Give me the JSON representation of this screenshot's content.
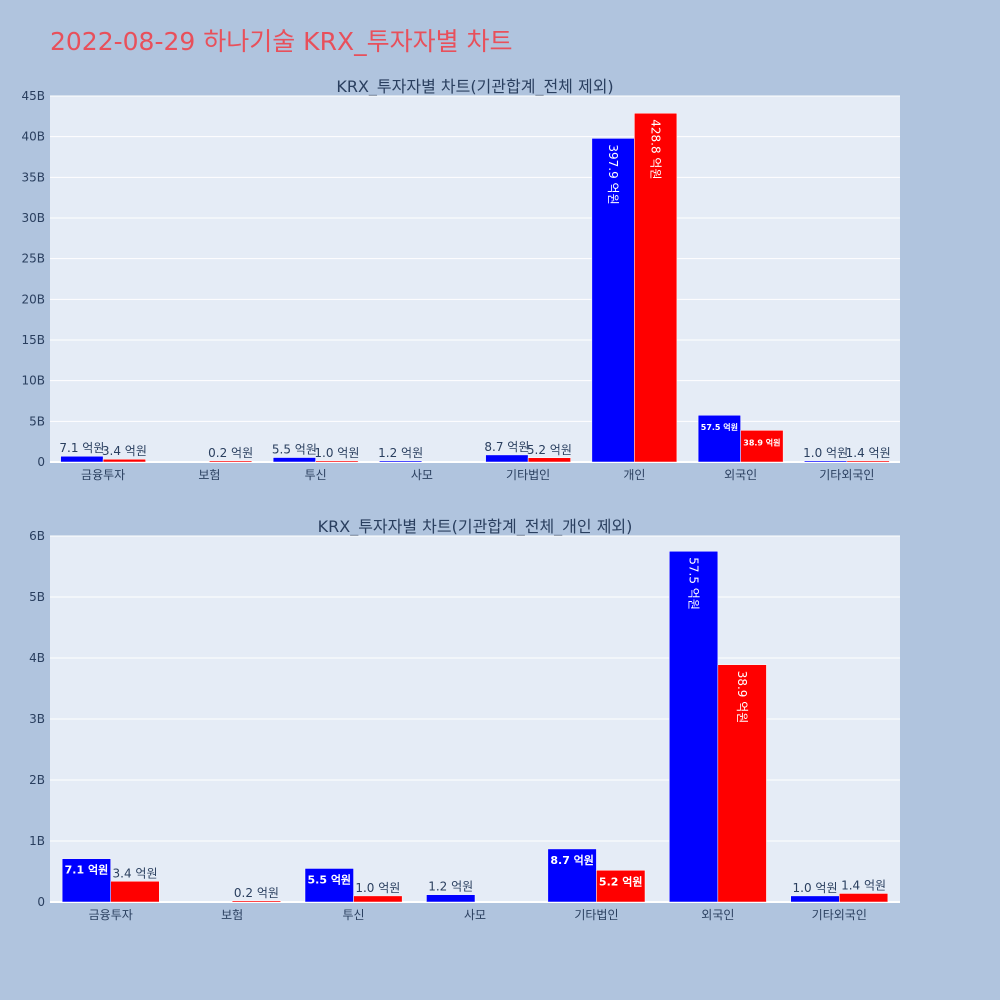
{
  "page": {
    "title": "2022-08-29 하나기술 KRX_투자자별 차트"
  },
  "colors": {
    "series_a": "#0000ff",
    "series_b": "#ff0000",
    "plot_bg": "#e5ecf6",
    "page_bg": "#b0c4de",
    "title": "#e8505b",
    "text": "#2a3f5f"
  },
  "chart_data": [
    {
      "type": "bar",
      "title": "KRX_투자자별 차트(기관합계_전체 제외)",
      "categories": [
        "금융투자",
        "보험",
        "투신",
        "사모",
        "기타법인",
        "개인",
        "외국인",
        "기타외국인"
      ],
      "ylim": [
        0,
        45000000000
      ],
      "yticks": [
        0,
        5000000000,
        10000000000,
        15000000000,
        20000000000,
        25000000000,
        30000000000,
        35000000000,
        40000000000,
        45000000000
      ],
      "ytick_labels": [
        "0",
        "5B",
        "10B",
        "15B",
        "20B",
        "25B",
        "30B",
        "35B",
        "40B",
        "45B"
      ],
      "grid": true,
      "series": [
        {
          "values": [
            710000000,
            0,
            550000000,
            120000000,
            870000000,
            39790000000,
            5750000000,
            100000000
          ],
          "labels": [
            "7.1 억원",
            "",
            "5.5 억원",
            "1.2 억원",
            "8.7 억원",
            "397.9 억원",
            "57.5 억원",
            "1.0 억원"
          ]
        },
        {
          "values": [
            340000000,
            20000000,
            100000000,
            0,
            520000000,
            42880000000,
            3890000000,
            140000000
          ],
          "labels": [
            "3.4 억원",
            "0.2 억원",
            "1.0 억원",
            "",
            "5.2 억원",
            "428.8 억원",
            "38.9 억원",
            "1.4 억원"
          ]
        }
      ]
    },
    {
      "type": "bar",
      "title": "KRX_투자자별 차트(기관합계_전체_개인 제외)",
      "categories": [
        "금융투자",
        "보험",
        "투신",
        "사모",
        "기타법인",
        "외국인",
        "기타외국인"
      ],
      "ylim": [
        0,
        6000000000
      ],
      "yticks": [
        0,
        1000000000,
        2000000000,
        3000000000,
        4000000000,
        5000000000,
        6000000000
      ],
      "ytick_labels": [
        "0",
        "1B",
        "2B",
        "3B",
        "4B",
        "5B",
        "6B"
      ],
      "grid": true,
      "series": [
        {
          "values": [
            710000000,
            0,
            550000000,
            120000000,
            870000000,
            5750000000,
            100000000
          ],
          "labels": [
            "7.1 억원",
            "",
            "5.5 억원",
            "1.2 억원",
            "8.7 억원",
            "57.5 억원",
            "1.0 억원"
          ]
        },
        {
          "values": [
            340000000,
            20000000,
            100000000,
            0,
            520000000,
            3890000000,
            140000000
          ],
          "labels": [
            "3.4 억원",
            "0.2 억원",
            "1.0 억원",
            "",
            "5.2 억원",
            "38.9 억원",
            "1.4 억원"
          ]
        }
      ]
    }
  ]
}
